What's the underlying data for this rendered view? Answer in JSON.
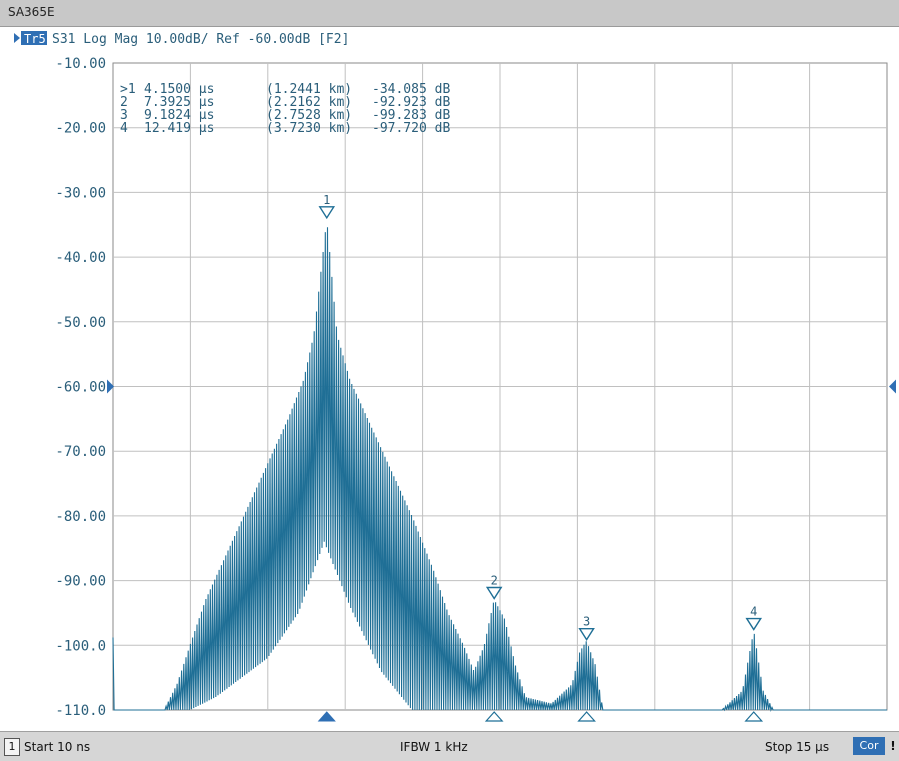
{
  "window": {
    "title": "SA365E"
  },
  "header": {
    "trace_badge": "Tr5",
    "description": "S31 Log Mag 10.00dB/ Ref -60.00dB [F2]"
  },
  "footer": {
    "channel": "1",
    "start": "Start 10 ns",
    "ifbw": "IFBW 1 kHz",
    "stop": "Stop 15 µs",
    "cor": "Cor",
    "bang": "!"
  },
  "colors": {
    "trace": "#1f6f96",
    "grid": "#c0c0c0",
    "text": "#2a5e7a",
    "badge": "#2f6fb4"
  },
  "chart_data": {
    "type": "line",
    "title": "",
    "xlabel": "",
    "ylabel": "",
    "xlim": [
      0.01,
      15
    ],
    "ylim": [
      -110,
      -10
    ],
    "y_tick_labels": [
      "-10.00",
      "-20.00",
      "-30.00",
      "-40.00",
      "-50.00",
      "-60.00",
      "-70.00",
      "-80.00",
      "-90.00",
      "-100.0",
      "-110.0"
    ],
    "grid": true,
    "reference_level_db": -60,
    "markers": [
      {
        "id": "1",
        "active": true,
        "time": "4.1500 µs",
        "distance": "(1.2441 km)",
        "value": "-34.085 dB",
        "x": 4.15,
        "y": -34.085
      },
      {
        "id": "2",
        "active": false,
        "time": "7.3925 µs",
        "distance": "(2.2162 km)",
        "value": "-92.923 dB",
        "x": 7.3925,
        "y": -92.923
      },
      {
        "id": "3",
        "active": false,
        "time": "9.1824 µs",
        "distance": "(2.7528 km)",
        "value": "-99.283 dB",
        "x": 9.1824,
        "y": -99.283
      },
      {
        "id": "4",
        "active": false,
        "time": "12.419 µs",
        "distance": "(3.7230 km)",
        "value": "-97.720 dB",
        "x": 12.419,
        "y": -97.72
      }
    ],
    "series": [
      {
        "envelope": [
          [
            0.0,
            -96
          ],
          [
            0.05,
            -110
          ],
          [
            1.0,
            -110
          ],
          [
            1.25,
            -106
          ],
          [
            1.5,
            -100
          ],
          [
            1.8,
            -93
          ],
          [
            2.2,
            -86
          ],
          [
            2.6,
            -79
          ],
          [
            3.0,
            -72
          ],
          [
            3.4,
            -65
          ],
          [
            3.7,
            -59
          ],
          [
            3.9,
            -52
          ],
          [
            4.15,
            -34.1
          ],
          [
            4.35,
            -52
          ],
          [
            4.6,
            -59
          ],
          [
            5.0,
            -66
          ],
          [
            5.4,
            -73
          ],
          [
            5.8,
            -80
          ],
          [
            6.2,
            -88
          ],
          [
            6.5,
            -95
          ],
          [
            6.8,
            -100
          ],
          [
            7.0,
            -104
          ],
          [
            7.2,
            -100
          ],
          [
            7.39,
            -92.9
          ],
          [
            7.6,
            -96
          ],
          [
            7.8,
            -103
          ],
          [
            8.0,
            -108
          ],
          [
            8.5,
            -109
          ],
          [
            8.9,
            -106
          ],
          [
            9.05,
            -101
          ],
          [
            9.18,
            -99.3
          ],
          [
            9.35,
            -103
          ],
          [
            9.5,
            -110
          ],
          [
            11.8,
            -110
          ],
          [
            12.2,
            -107
          ],
          [
            12.42,
            -97.7
          ],
          [
            12.6,
            -107
          ],
          [
            12.8,
            -110
          ],
          [
            15.0,
            -110
          ]
        ],
        "floor": [
          [
            0.0,
            -110
          ],
          [
            1.0,
            -110
          ],
          [
            1.5,
            -110
          ],
          [
            2.0,
            -108
          ],
          [
            3.0,
            -102
          ],
          [
            3.6,
            -95
          ],
          [
            4.1,
            -84
          ],
          [
            4.6,
            -94
          ],
          [
            5.2,
            -104
          ],
          [
            5.8,
            -110
          ],
          [
            6.2,
            -110
          ],
          [
            6.6,
            -110
          ],
          [
            7.0,
            -110
          ],
          [
            7.4,
            -110
          ],
          [
            7.8,
            -110
          ],
          [
            8.2,
            -110
          ],
          [
            8.7,
            -110
          ],
          [
            9.2,
            -110
          ],
          [
            9.6,
            -110
          ],
          [
            12.0,
            -110
          ],
          [
            12.4,
            -110
          ],
          [
            15.0,
            -110
          ]
        ]
      }
    ]
  }
}
